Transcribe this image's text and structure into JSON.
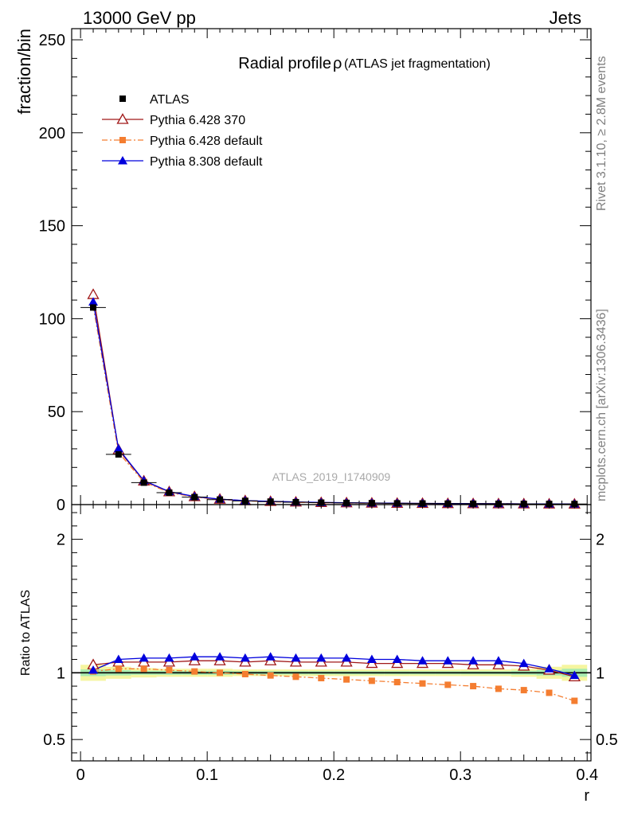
{
  "header": {
    "left": "13000 GeV pp",
    "right": "Jets"
  },
  "side_labels": {
    "rivet": "Rivet 3.1.10, ≥ 2.8M events",
    "mcplots": "mcplots.cern.ch [arXiv:1306.3436]"
  },
  "chart_data": [
    {
      "type": "line",
      "title": "Radial profile",
      "title_symbol": "ρ",
      "title_suffix": "(ATLAS jet fragmentation)",
      "watermark": "ATLAS_2019_I1740909",
      "xlabel": "r",
      "ylabel": "fraction/bin",
      "xlim": [
        -0.007,
        0.403
      ],
      "ylim": [
        0,
        256
      ],
      "yticks": [
        "0",
        "50",
        "100",
        "150",
        "200",
        "250"
      ],
      "x": [
        0.01,
        0.03,
        0.05,
        0.07,
        0.09,
        0.11,
        0.13,
        0.15,
        0.17,
        0.19,
        0.21,
        0.23,
        0.25,
        0.27,
        0.29,
        0.31,
        0.33,
        0.35,
        0.37,
        0.39
      ],
      "legend_position": "top-left",
      "series": [
        {
          "name": "ATLAS",
          "color": "#000000",
          "marker": "square",
          "values": [
            106,
            27,
            11.8,
            6.4,
            4.0,
            2.7,
            2.0,
            1.6,
            1.3,
            1.05,
            0.9,
            0.78,
            0.68,
            0.6,
            0.53,
            0.47,
            0.42,
            0.38,
            0.34,
            0.31
          ]
        },
        {
          "name": "Pythia 6.428 370",
          "color": "#a01818",
          "marker": "open-triangle",
          "values": [
            113,
            29.5,
            12.7,
            6.9,
            4.3,
            2.9,
            2.1,
            1.7,
            1.38,
            1.12,
            0.96,
            0.82,
            0.72,
            0.64,
            0.56,
            0.5,
            0.45,
            0.4,
            0.35,
            0.3
          ]
        },
        {
          "name": "Pythia 6.428 default",
          "color": "#f47d30",
          "marker": "square",
          "dash": true,
          "values": [
            107,
            28,
            12.2,
            6.5,
            4.05,
            2.7,
            2.0,
            1.55,
            1.25,
            1.0,
            0.85,
            0.73,
            0.62,
            0.55,
            0.47,
            0.42,
            0.36,
            0.32,
            0.28,
            0.24
          ]
        },
        {
          "name": "Pythia 8.308 default",
          "color": "#0000dd",
          "marker": "triangle",
          "values": [
            109,
            30,
            12.9,
            7.0,
            4.35,
            2.95,
            2.15,
            1.75,
            1.4,
            1.14,
            0.98,
            0.84,
            0.74,
            0.65,
            0.57,
            0.51,
            0.46,
            0.4,
            0.35,
            0.3
          ]
        }
      ]
    },
    {
      "type": "line",
      "ylabel": "Ratio to ATLAS",
      "xlabel": "r",
      "xlim": [
        -0.007,
        0.403
      ],
      "ylim": [
        0.34,
        2.26
      ],
      "yticks": [
        "0.5",
        "1",
        "2"
      ],
      "xticks": [
        "0",
        "0.1",
        "0.2",
        "0.3",
        "0.4"
      ],
      "x": [
        0.01,
        0.03,
        0.05,
        0.07,
        0.09,
        0.11,
        0.13,
        0.15,
        0.17,
        0.19,
        0.21,
        0.23,
        0.25,
        0.27,
        0.29,
        0.31,
        0.33,
        0.35,
        0.37,
        0.39
      ],
      "band_inner": [
        0.025,
        0.02,
        0.015,
        0.015,
        0.015,
        0.015,
        0.012,
        0.012,
        0.012,
        0.012,
        0.012,
        0.012,
        0.012,
        0.012,
        0.012,
        0.012,
        0.012,
        0.015,
        0.02,
        0.03
      ],
      "band_outer": [
        0.06,
        0.045,
        0.035,
        0.03,
        0.03,
        0.03,
        0.025,
        0.025,
        0.025,
        0.025,
        0.025,
        0.025,
        0.025,
        0.025,
        0.025,
        0.025,
        0.025,
        0.03,
        0.045,
        0.06
      ],
      "series": [
        {
          "name": "Pythia 6.428 370",
          "color": "#a01818",
          "marker": "open-triangle",
          "values": [
            1.06,
            1.08,
            1.08,
            1.08,
            1.09,
            1.09,
            1.08,
            1.09,
            1.08,
            1.08,
            1.08,
            1.07,
            1.07,
            1.07,
            1.07,
            1.06,
            1.06,
            1.05,
            1.02,
            0.97
          ]
        },
        {
          "name": "Pythia 6.428 default",
          "color": "#f47d30",
          "marker": "square",
          "dash": true,
          "values": [
            1.01,
            1.03,
            1.03,
            1.02,
            1.01,
            1.0,
            0.99,
            0.98,
            0.97,
            0.96,
            0.95,
            0.94,
            0.93,
            0.92,
            0.91,
            0.9,
            0.88,
            0.87,
            0.85,
            0.79
          ]
        },
        {
          "name": "Pythia 8.308 default",
          "color": "#0000dd",
          "marker": "triangle",
          "values": [
            1.02,
            1.1,
            1.11,
            1.11,
            1.12,
            1.12,
            1.11,
            1.12,
            1.11,
            1.11,
            1.11,
            1.1,
            1.1,
            1.09,
            1.09,
            1.09,
            1.09,
            1.07,
            1.03,
            0.98
          ]
        }
      ]
    }
  ]
}
